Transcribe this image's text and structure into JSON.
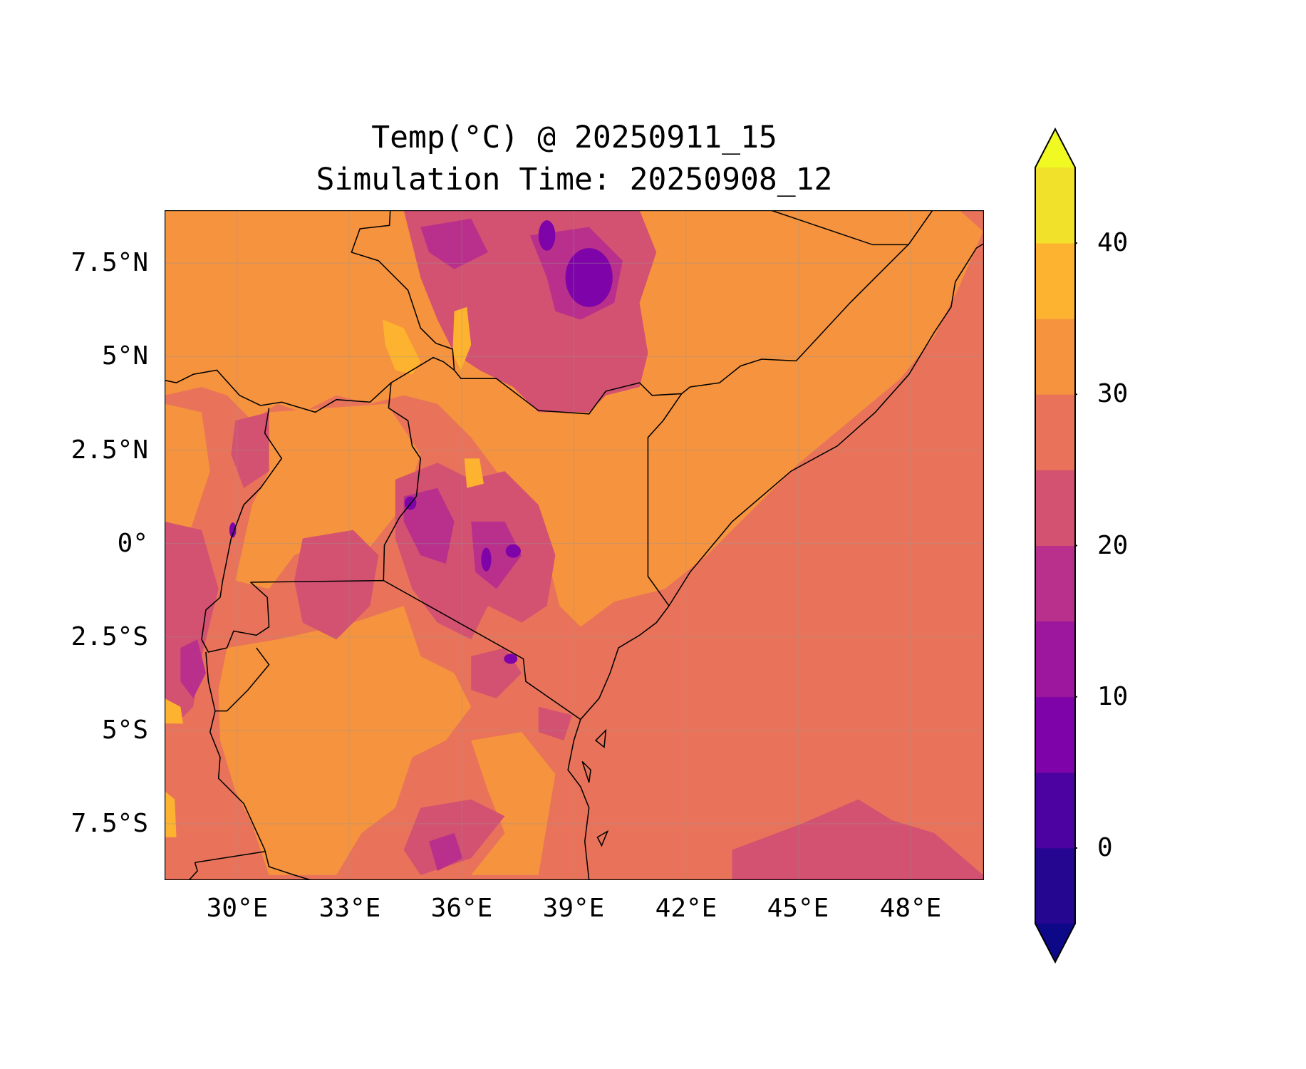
{
  "chart_data": {
    "type": "heatmap",
    "subtype": "filled-contour map",
    "title": [
      "Temp(°C) @ 20250911_15",
      "Simulation Time: 20250908_12"
    ],
    "xlabel": "",
    "ylabel": "",
    "xlim": [
      28,
      50
    ],
    "ylim": [
      -9,
      9
    ],
    "x_ticks": [
      30,
      33,
      36,
      39,
      42,
      45,
      48
    ],
    "x_tick_labels": [
      "30°E",
      "33°E",
      "36°E",
      "39°E",
      "42°E",
      "45°E",
      "48°E"
    ],
    "y_ticks": [
      7.5,
      5,
      2.5,
      0,
      -2.5,
      -5,
      -7.5
    ],
    "y_tick_labels": [
      "7.5°N",
      "5°N",
      "2.5°N",
      "0°",
      "2.5°S",
      "5°S",
      "7.5°S"
    ],
    "grid": true,
    "colorbar": {
      "levels": [
        -5,
        0,
        5,
        10,
        15,
        20,
        25,
        30,
        35,
        40,
        45
      ],
      "colors": [
        "#240691",
        "#4c02a1",
        "#7e03a8",
        "#9c179e",
        "#b8308b",
        "#d35171",
        "#e8735a",
        "#f5933e",
        "#fdb32f",
        "#f2e12a"
      ],
      "under_color": "#0d0887",
      "over_color": "#f0f921",
      "extend": "both",
      "ticks": [
        0,
        10,
        20,
        30,
        40
      ],
      "tick_labels": [
        "0",
        "10",
        "20",
        "30",
        "40"
      ],
      "placement": "right"
    }
  }
}
